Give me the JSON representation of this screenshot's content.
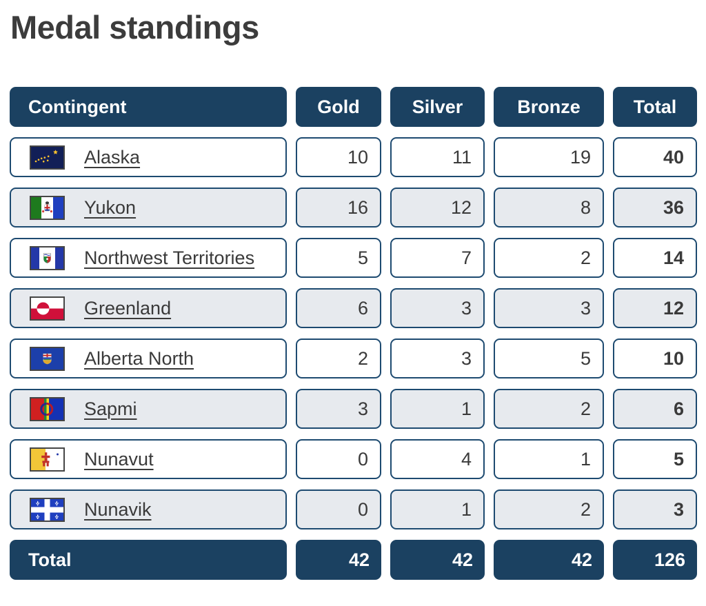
{
  "title": "Medal standings",
  "colors": {
    "header_bg": "#1b4161",
    "row_border": "#1d4a70",
    "row_alt_bg": "#e7eaee",
    "row_bg": "#ffffff",
    "text": "#3a3a3a",
    "title": "#3c3c3c"
  },
  "table": {
    "columns": [
      {
        "key": "contingent",
        "label": "Contingent"
      },
      {
        "key": "gold",
        "label": "Gold"
      },
      {
        "key": "silver",
        "label": "Silver"
      },
      {
        "key": "bronze",
        "label": "Bronze"
      },
      {
        "key": "total",
        "label": "Total"
      }
    ],
    "rows": [
      {
        "contingent": "Alaska",
        "flag": "alaska",
        "gold": 10,
        "silver": 11,
        "bronze": 19,
        "total": 40
      },
      {
        "contingent": "Yukon",
        "flag": "yukon",
        "gold": 16,
        "silver": 12,
        "bronze": 8,
        "total": 36
      },
      {
        "contingent": "Northwest Territories",
        "flag": "northwest-territories",
        "gold": 5,
        "silver": 7,
        "bronze": 2,
        "total": 14
      },
      {
        "contingent": "Greenland",
        "flag": "greenland",
        "gold": 6,
        "silver": 3,
        "bronze": 3,
        "total": 12
      },
      {
        "contingent": "Alberta North",
        "flag": "alberta-north",
        "gold": 2,
        "silver": 3,
        "bronze": 5,
        "total": 10
      },
      {
        "contingent": "Sapmi",
        "flag": "sapmi",
        "gold": 3,
        "silver": 1,
        "bronze": 2,
        "total": 6
      },
      {
        "contingent": "Nunavut",
        "flag": "nunavut",
        "gold": 0,
        "silver": 4,
        "bronze": 1,
        "total": 5
      },
      {
        "contingent": "Nunavik",
        "flag": "nunavik",
        "gold": 0,
        "silver": 1,
        "bronze": 2,
        "total": 3
      }
    ],
    "footer": {
      "label": "Total",
      "gold": 42,
      "silver": 42,
      "bronze": 42,
      "total": 126
    }
  }
}
